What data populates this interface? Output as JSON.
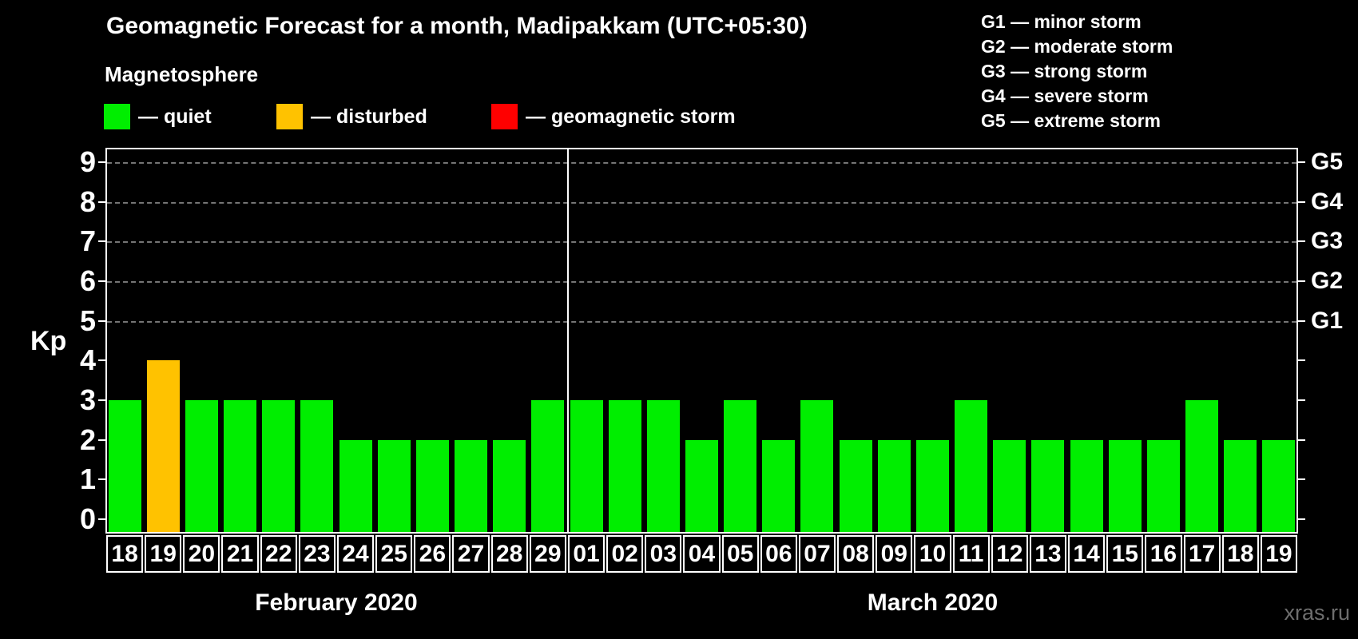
{
  "watermark": "xras.ru",
  "legend": {
    "heading": "Magnetosphere",
    "items": [
      {
        "name": "quiet",
        "label": "— quiet",
        "color": "#00EE00"
      },
      {
        "name": "disturbed",
        "label": "— disturbed",
        "color": "#FFC200"
      },
      {
        "name": "storm",
        "label": "— geomagnetic storm",
        "color": "#FF0000"
      }
    ]
  },
  "g_scale_legend": [
    "G1 — minor storm",
    "G2 — moderate storm",
    "G3 — strong storm",
    "G4 — severe storm",
    "G5 — extreme storm"
  ],
  "chart_data": {
    "type": "bar",
    "title": "Geomagnetic Forecast for a month, Madipakkam (UTC+05:30)",
    "ylabel": "Kp",
    "ylim": [
      0,
      9
    ],
    "yticks": [
      0,
      1,
      2,
      3,
      4,
      5,
      6,
      7,
      8,
      9
    ],
    "grid_values": [
      5,
      6,
      7,
      8,
      9
    ],
    "grid_on": true,
    "legend_position": "top",
    "right_axis": [
      {
        "value": 5,
        "label": "G1"
      },
      {
        "value": 6,
        "label": "G2"
      },
      {
        "value": 7,
        "label": "G3"
      },
      {
        "value": 8,
        "label": "G4"
      },
      {
        "value": 9,
        "label": "G5"
      }
    ],
    "months": [
      {
        "label": "February 2020",
        "days": 12
      },
      {
        "label": "March 2020",
        "days": 19
      }
    ],
    "categories": [
      "18",
      "19",
      "20",
      "21",
      "22",
      "23",
      "24",
      "25",
      "26",
      "27",
      "28",
      "29",
      "01",
      "02",
      "03",
      "04",
      "05",
      "06",
      "07",
      "08",
      "09",
      "10",
      "11",
      "12",
      "13",
      "14",
      "15",
      "16",
      "17",
      "18",
      "19"
    ],
    "series": [
      {
        "name": "Kp forecast",
        "values": [
          3,
          4,
          3,
          3,
          3,
          3,
          2,
          2,
          2,
          2,
          2,
          3,
          3,
          3,
          3,
          2,
          3,
          2,
          3,
          2,
          2,
          2,
          3,
          2,
          2,
          2,
          2,
          2,
          3,
          2,
          2
        ]
      }
    ],
    "states": [
      "quiet",
      "disturbed",
      "quiet",
      "quiet",
      "quiet",
      "quiet",
      "quiet",
      "quiet",
      "quiet",
      "quiet",
      "quiet",
      "quiet",
      "quiet",
      "quiet",
      "quiet",
      "quiet",
      "quiet",
      "quiet",
      "quiet",
      "quiet",
      "quiet",
      "quiet",
      "quiet",
      "quiet",
      "quiet",
      "quiet",
      "quiet",
      "quiet",
      "quiet",
      "quiet",
      "quiet"
    ],
    "state_colors": {
      "quiet": "#00EE00",
      "disturbed": "#FFC200",
      "storm": "#FF0000"
    }
  }
}
